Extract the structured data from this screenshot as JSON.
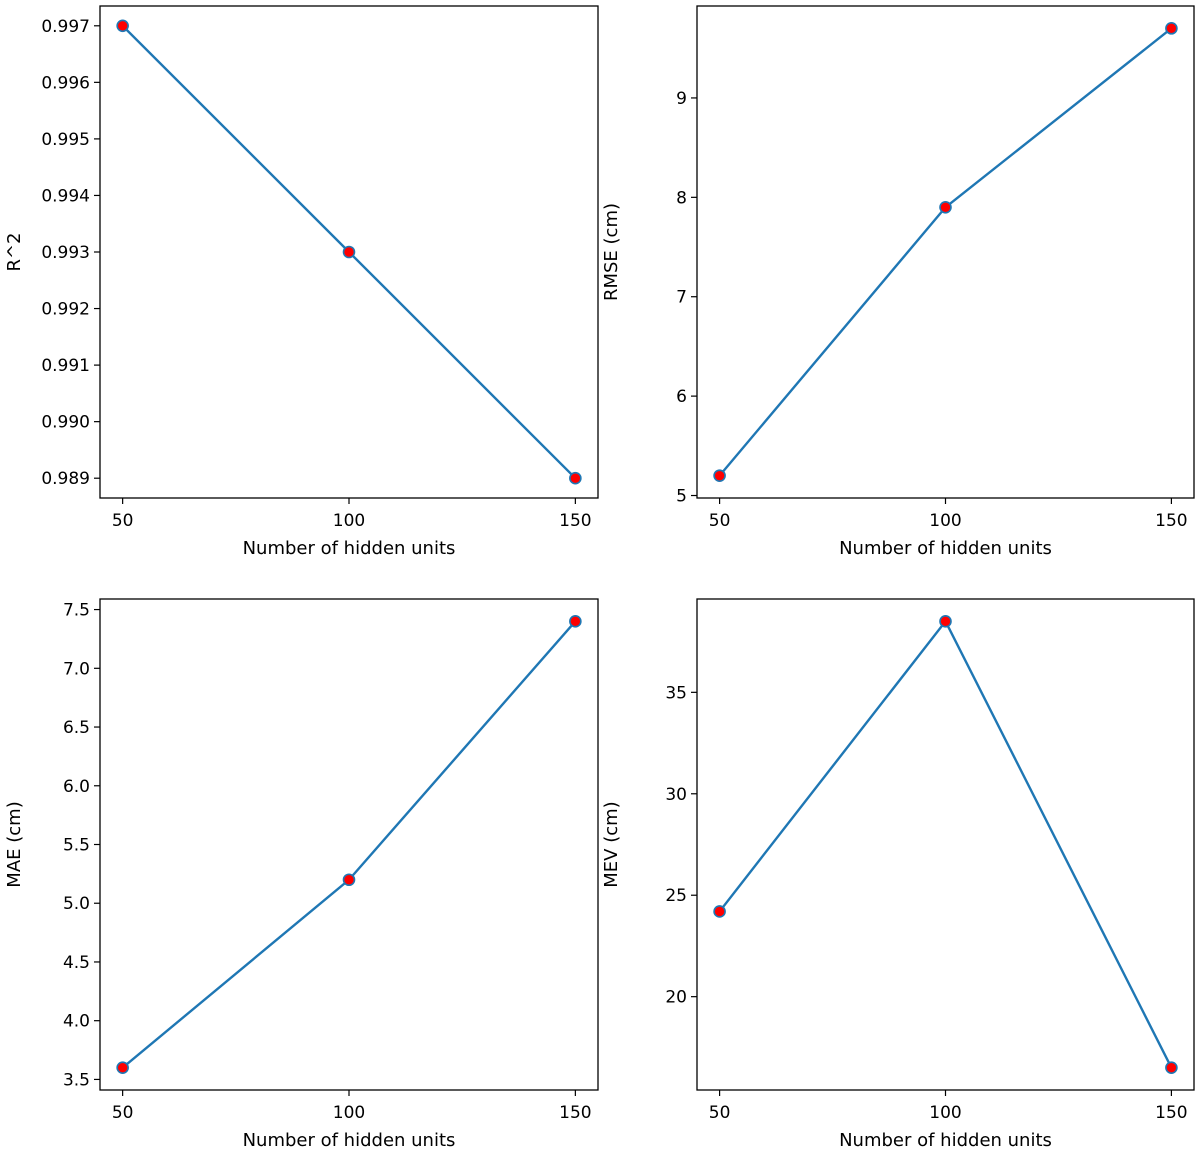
{
  "chart_data": [
    {
      "type": "line",
      "x": [
        50,
        100,
        150
      ],
      "y": [
        0.997,
        0.993,
        0.989
      ],
      "xlabel": "Number of hidden units",
      "ylabel": "R^2",
      "xlim": [
        45,
        155
      ],
      "ylim": [
        0.98865,
        0.99735
      ],
      "xticks": [
        50,
        100,
        150
      ],
      "yticks": [
        0.989,
        0.99,
        0.991,
        0.992,
        0.993,
        0.994,
        0.995,
        0.996,
        0.997
      ],
      "ytick_decimals": 3,
      "grid": false
    },
    {
      "type": "line",
      "x": [
        50,
        100,
        150
      ],
      "y": [
        5.2,
        7.9,
        9.7
      ],
      "xlabel": "Number of hidden units",
      "ylabel": "RMSE (cm)",
      "xlim": [
        45,
        155
      ],
      "ylim": [
        4.975,
        9.925
      ],
      "xticks": [
        50,
        100,
        150
      ],
      "yticks": [
        5,
        6,
        7,
        8,
        9
      ],
      "ytick_decimals": 0,
      "grid": false
    },
    {
      "type": "line",
      "x": [
        50,
        100,
        150
      ],
      "y": [
        3.6,
        5.2,
        7.4
      ],
      "xlabel": "Number of hidden units",
      "ylabel": "MAE (cm)",
      "xlim": [
        45,
        155
      ],
      "ylim": [
        3.41,
        7.59
      ],
      "xticks": [
        50,
        100,
        150
      ],
      "yticks": [
        3.5,
        4.0,
        4.5,
        5.0,
        5.5,
        6.0,
        6.5,
        7.0,
        7.5
      ],
      "ytick_decimals": 1,
      "grid": false
    },
    {
      "type": "line",
      "x": [
        50,
        100,
        150
      ],
      "y": [
        24.2,
        38.5,
        16.5
      ],
      "xlabel": "Number of hidden units",
      "ylabel": "MEV (cm)",
      "xlim": [
        45,
        155
      ],
      "ylim": [
        15.4,
        39.6
      ],
      "xticks": [
        50,
        100,
        150
      ],
      "yticks": [
        20,
        25,
        30,
        35
      ],
      "ytick_decimals": 0,
      "grid": false
    }
  ],
  "style": {
    "line_color": "#1f77b4",
    "marker_face": "#ff0000",
    "marker_edge": "#1f77b4"
  }
}
